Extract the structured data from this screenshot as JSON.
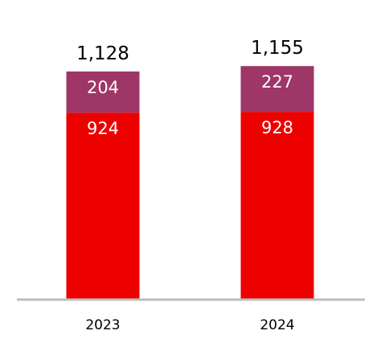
{
  "chart_data": {
    "type": "bar",
    "stacked": true,
    "title": "",
    "xlabel": "",
    "ylabel": "",
    "categories": [
      "2023",
      "2024"
    ],
    "series": [
      {
        "values": [
          924,
          928
        ],
        "color": "#EC0000"
      },
      {
        "values": [
          204,
          227
        ],
        "color": "#9E3667"
      }
    ],
    "totals": [
      "1,128",
      "1,155"
    ],
    "segment_labels": [
      [
        "924",
        "928"
      ],
      [
        "204",
        "227"
      ]
    ],
    "ylim": [
      0,
      1128
    ],
    "grid": false,
    "legend": "none",
    "axis_color": "#BDBDBD"
  }
}
